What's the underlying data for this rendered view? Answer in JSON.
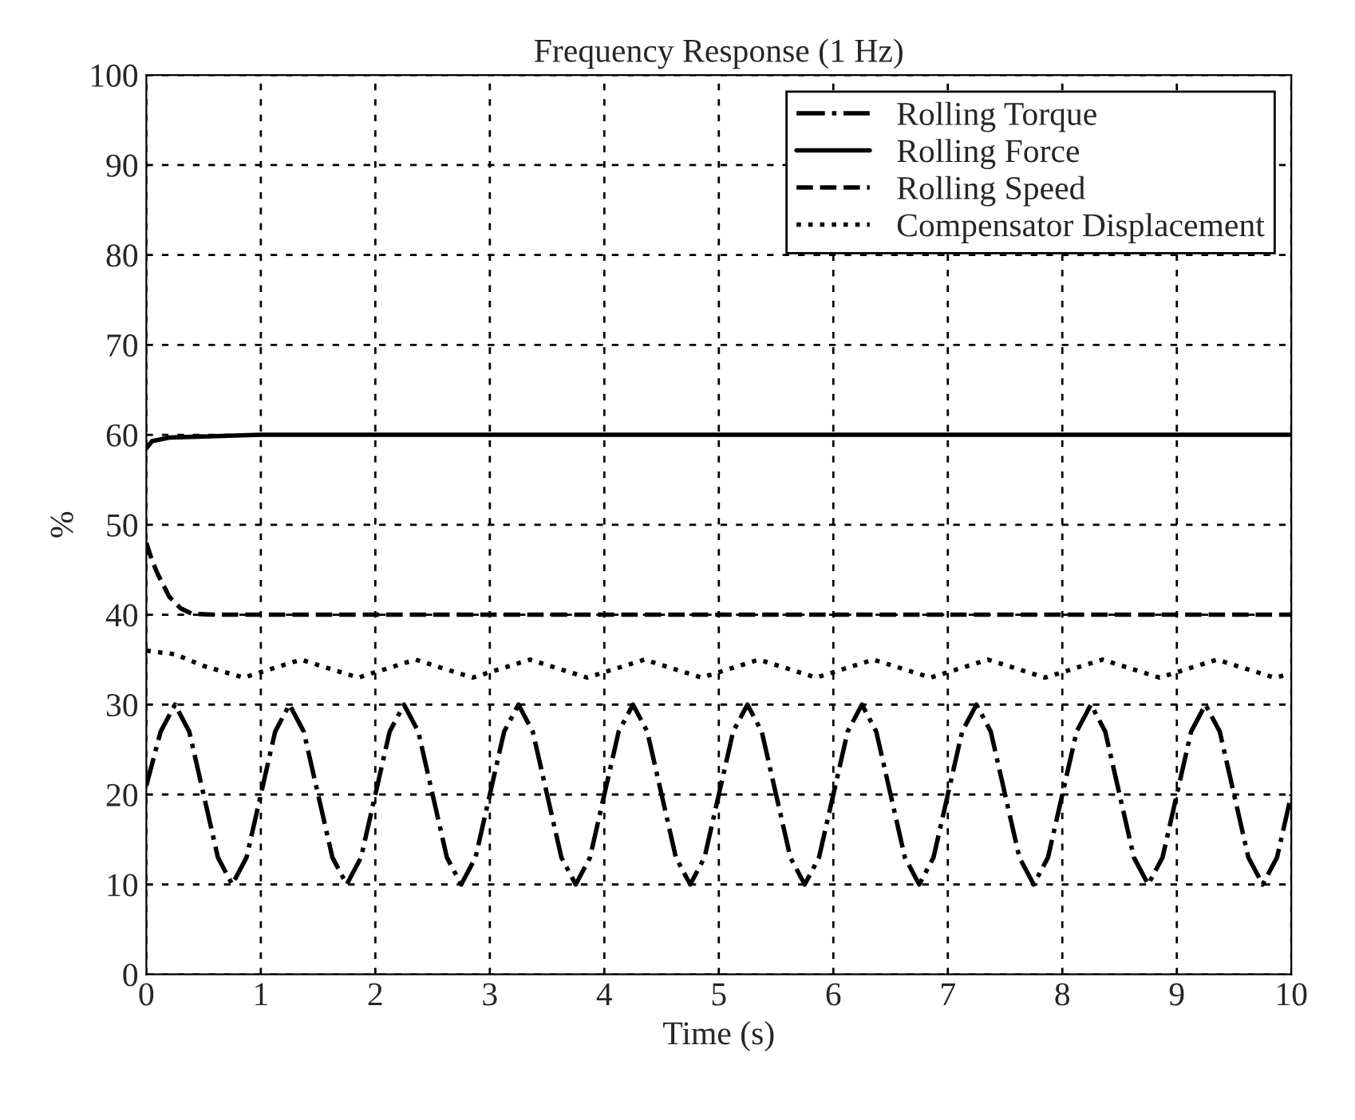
{
  "chart_data": {
    "type": "line",
    "title": "Frequency Response (1 Hz)",
    "xlabel": "Time (s)",
    "ylabel": "%",
    "xlim": [
      0,
      10
    ],
    "ylim": [
      0,
      100
    ],
    "xticks": [
      0,
      1,
      2,
      3,
      4,
      5,
      6,
      7,
      8,
      9,
      10
    ],
    "yticks": [
      0,
      10,
      20,
      30,
      40,
      50,
      60,
      70,
      80,
      90,
      100
    ],
    "grid": true,
    "legend": "top right",
    "series": [
      {
        "name": "Rolling Torque",
        "color": "#000000",
        "line_style": "dashdot",
        "x": [
          0,
          0.125,
          0.25,
          0.375,
          0.5,
          0.625,
          0.75,
          0.875,
          1,
          1.125,
          1.25,
          1.375,
          1.5,
          1.625,
          1.75,
          1.875,
          2,
          2.125,
          2.25,
          2.375,
          2.5,
          2.625,
          2.75,
          2.875,
          3,
          3.125,
          3.25,
          3.375,
          3.5,
          3.625,
          3.75,
          3.875,
          4,
          4.125,
          4.25,
          4.375,
          4.5,
          4.625,
          4.75,
          4.875,
          5,
          5.125,
          5.25,
          5.375,
          5.5,
          5.625,
          5.75,
          5.875,
          6,
          6.125,
          6.25,
          6.375,
          6.5,
          6.625,
          6.75,
          6.875,
          7,
          7.125,
          7.25,
          7.375,
          7.5,
          7.625,
          7.75,
          7.875,
          8,
          8.125,
          8.25,
          8.375,
          8.5,
          8.625,
          8.75,
          8.875,
          9,
          9.125,
          9.25,
          9.375,
          9.5,
          9.625,
          9.75,
          9.875,
          10
        ],
        "values": [
          21,
          27,
          30,
          27,
          20,
          13,
          10,
          13,
          20,
          27,
          30,
          27,
          20,
          13,
          10,
          13,
          20,
          27,
          30,
          27,
          20,
          13,
          10,
          13,
          20,
          27,
          30,
          27,
          20,
          13,
          10,
          13,
          20,
          27,
          30,
          27,
          20,
          13,
          10,
          13,
          20,
          27,
          30,
          27,
          20,
          13,
          10,
          13,
          20,
          27,
          30,
          27,
          20,
          13,
          10,
          13,
          20,
          27,
          30,
          27,
          20,
          13,
          10,
          13,
          20,
          27,
          30,
          27,
          20,
          13,
          10,
          13,
          20,
          27,
          30,
          27,
          20,
          13,
          10,
          13,
          20
        ]
      },
      {
        "name": "Rolling Force",
        "color": "#000000",
        "line_style": "solid",
        "x": [
          0,
          0.05,
          0.2,
          1,
          2,
          3,
          4,
          5,
          6,
          7,
          8,
          9,
          10
        ],
        "values": [
          58.5,
          59.3,
          59.7,
          60,
          60,
          60,
          60,
          60,
          60,
          60,
          60,
          60,
          60
        ]
      },
      {
        "name": "Rolling Speed",
        "color": "#000000",
        "line_style": "dashed",
        "x": [
          0,
          0.05,
          0.1,
          0.2,
          0.3,
          0.4,
          0.6,
          10
        ],
        "values": [
          48,
          46,
          44.5,
          42,
          40.7,
          40.1,
          40,
          40
        ]
      },
      {
        "name": "Compensator Displacement",
        "color": "#000000",
        "line_style": "dotted",
        "x": [
          0,
          0.25,
          0.5,
          0.85,
          1.1,
          1.35,
          1.6,
          1.85,
          2.1,
          2.35,
          2.6,
          2.85,
          3.1,
          3.35,
          3.6,
          3.85,
          4.1,
          4.35,
          4.6,
          4.85,
          5.1,
          5.35,
          5.6,
          5.85,
          6.1,
          6.35,
          6.6,
          6.85,
          7.1,
          7.35,
          7.6,
          7.85,
          8.1,
          8.35,
          8.6,
          8.85,
          9.1,
          9.35,
          9.6,
          9.85,
          10
        ],
        "values": [
          36,
          35.6,
          34.3,
          33,
          34,
          35,
          34,
          33,
          34,
          35,
          34,
          33,
          34,
          35,
          34,
          33,
          34,
          35,
          34,
          33,
          34,
          35,
          34,
          33,
          34,
          35,
          34,
          33,
          34,
          35,
          34,
          33,
          34,
          35,
          34,
          33,
          34,
          35,
          34,
          33,
          33.4
        ]
      }
    ]
  }
}
